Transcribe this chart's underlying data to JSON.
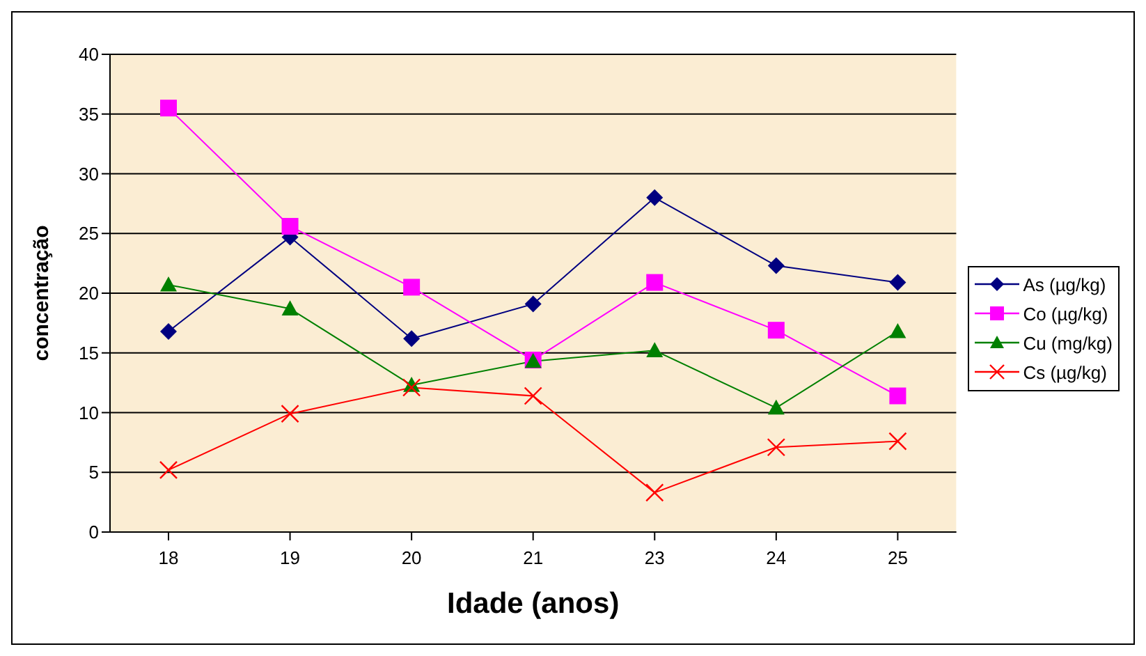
{
  "chart_data": {
    "type": "line",
    "xlabel": "Idade (anos)",
    "ylabel": "concentração",
    "categories": [
      "18",
      "19",
      "20",
      "21",
      "23",
      "24",
      "25"
    ],
    "series": [
      {
        "name": "As (µg/kg)",
        "color": "#000080",
        "marker": "diamond",
        "values": [
          16.8,
          24.7,
          16.2,
          19.1,
          28.0,
          22.3,
          20.9
        ]
      },
      {
        "name": "Co (µg/kg)",
        "color": "#ff00ff",
        "marker": "square",
        "values": [
          35.5,
          25.6,
          20.5,
          14.4,
          20.9,
          16.9,
          11.4
        ]
      },
      {
        "name": "Cu (mg/kg)",
        "color": "#008000",
        "marker": "triangle",
        "values": [
          20.7,
          18.7,
          12.3,
          14.3,
          15.2,
          10.4,
          16.8
        ]
      },
      {
        "name": "Cs (µg/kg)",
        "color": "#ff0000",
        "marker": "cross",
        "values": [
          5.2,
          9.9,
          12.1,
          11.4,
          3.3,
          7.1,
          7.6
        ]
      }
    ],
    "ylim": [
      0,
      40
    ],
    "yticks": [
      0,
      5,
      10,
      15,
      20,
      25,
      30,
      35,
      40
    ],
    "grid": "y",
    "legend": "right",
    "line_style": "solid"
  }
}
